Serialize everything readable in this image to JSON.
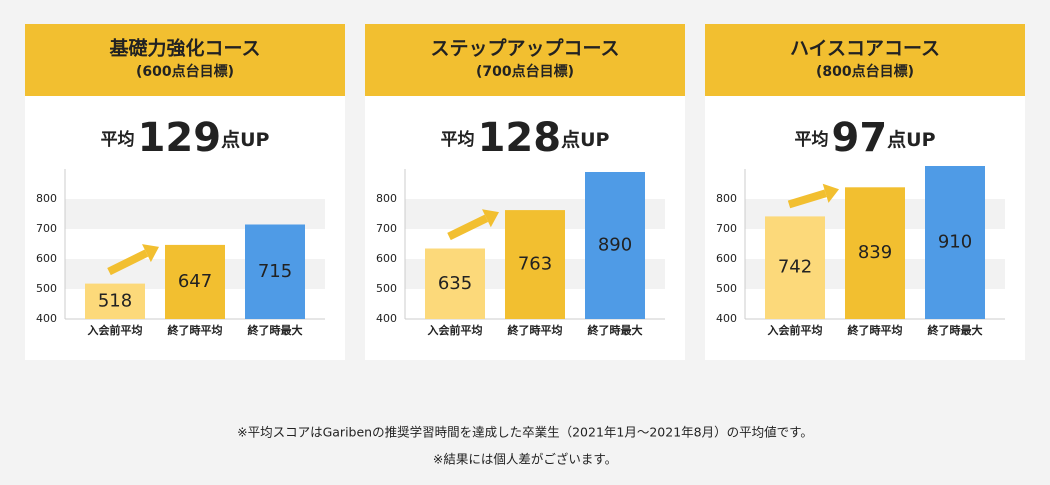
{
  "chart_data": [
    {
      "type": "bar",
      "title": "基礎力強化コース",
      "subtitle": "(600点台目標)",
      "headline_prefix": "平均",
      "headline_value": 129,
      "headline_suffix": "点UP",
      "categories": [
        "入会前平均",
        "終了時平均",
        "終了時最大"
      ],
      "values": [
        518,
        647,
        715
      ],
      "colors": [
        "#fcd97a",
        "#f2bf30",
        "#4f9be6"
      ],
      "ylim": [
        400,
        900
      ],
      "yticks": [
        400,
        500,
        600,
        700,
        800
      ],
      "grid": true
    },
    {
      "type": "bar",
      "title": "ステップアップコース",
      "subtitle": "(700点台目標)",
      "headline_prefix": "平均",
      "headline_value": 128,
      "headline_suffix": "点UP",
      "categories": [
        "入会前平均",
        "終了時平均",
        "終了時最大"
      ],
      "values": [
        635,
        763,
        890
      ],
      "colors": [
        "#fcd97a",
        "#f2bf30",
        "#4f9be6"
      ],
      "ylim": [
        400,
        900
      ],
      "yticks": [
        400,
        500,
        600,
        700,
        800
      ],
      "grid": true
    },
    {
      "type": "bar",
      "title": "ハイスコアコース",
      "subtitle": "(800点台目標)",
      "headline_prefix": "平均",
      "headline_value": 97,
      "headline_suffix": "点UP",
      "categories": [
        "入会前平均",
        "終了時平均",
        "終了時最大"
      ],
      "values": [
        742,
        839,
        910
      ],
      "colors": [
        "#fcd97a",
        "#f2bf30",
        "#4f9be6"
      ],
      "ylim": [
        400,
        900
      ],
      "yticks": [
        400,
        500,
        600,
        700,
        800
      ],
      "grid": true
    }
  ],
  "notes": [
    "※平均スコアはGaribenの推奨学習時間を達成した卒業生（2021年1月～2021年8月）の平均値です。",
    "※結果には個人差がございます。"
  ]
}
